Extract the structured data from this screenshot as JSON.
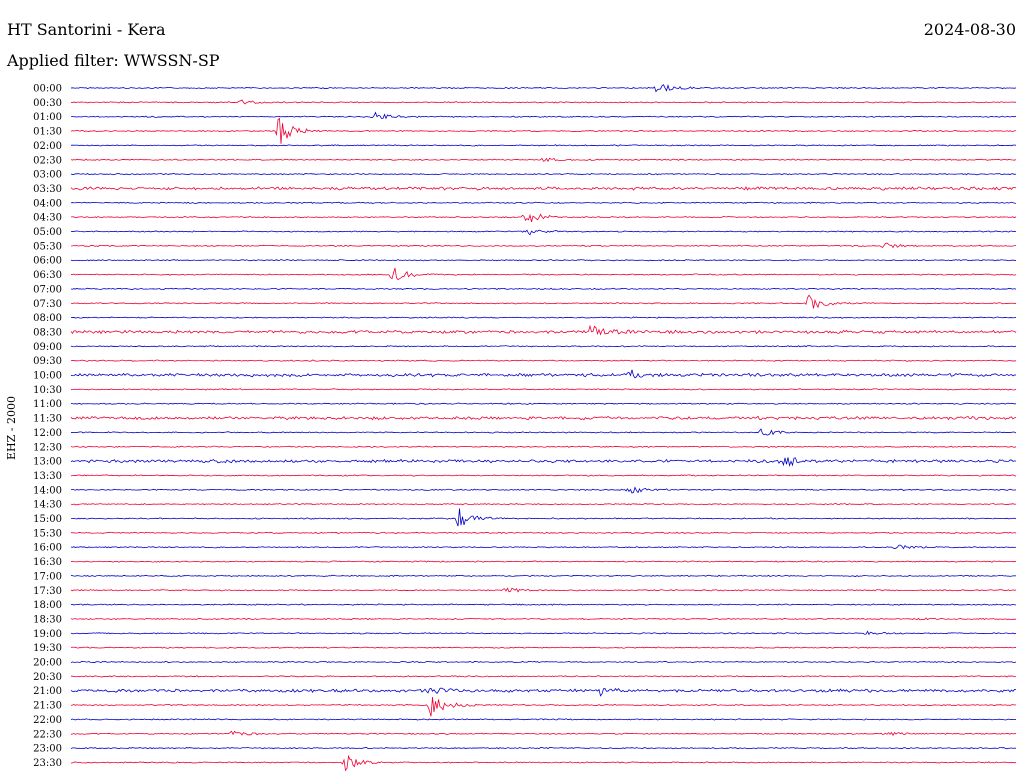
{
  "header": {
    "station": "HT Santorini - Kera",
    "filter": "Applied filter: WWSSN-SP",
    "date": "2024-08-30",
    "channel": "EHZ - 2000"
  },
  "chart_data": {
    "type": "line",
    "title": "HT Santorini - Kera",
    "subtitle": "Applied filter: WWSSN-SP",
    "ylabel": "EHZ - 2000",
    "row_labels": [
      "00:00",
      "00:30",
      "01:00",
      "01:30",
      "02:00",
      "02:30",
      "03:00",
      "03:30",
      "04:00",
      "04:30",
      "05:00",
      "05:30",
      "06:00",
      "06:30",
      "07:00",
      "07:30",
      "08:00",
      "08:30",
      "09:00",
      "09:30",
      "10:00",
      "10:30",
      "11:00",
      "11:30",
      "12:00",
      "12:30",
      "13:00",
      "13:30",
      "14:00",
      "14:30",
      "15:00",
      "15:30",
      "16:00",
      "16:30",
      "17:00",
      "17:30",
      "18:00",
      "18:30",
      "19:00",
      "19:30",
      "20:00",
      "20:30",
      "21:00",
      "21:30",
      "22:00",
      "22:30",
      "23:00",
      "23:30"
    ],
    "colors": {
      "even": "#0000cc",
      "odd": "#ee0033"
    },
    "events": [
      {
        "row": "00:00",
        "at": 0.62,
        "amp": 6
      },
      {
        "row": "00:30",
        "at": 0.18,
        "amp": 2
      },
      {
        "row": "01:00",
        "at": 0.32,
        "amp": 5
      },
      {
        "row": "01:30",
        "at": 0.22,
        "amp": 16
      },
      {
        "row": "02:30",
        "at": 0.5,
        "amp": 2
      },
      {
        "row": "04:30",
        "at": 0.48,
        "amp": 8
      },
      {
        "row": "05:00",
        "at": 0.48,
        "amp": 4
      },
      {
        "row": "05:30",
        "at": 0.86,
        "amp": 3
      },
      {
        "row": "06:30",
        "at": 0.34,
        "amp": 8
      },
      {
        "row": "07:30",
        "at": 0.78,
        "amp": 9
      },
      {
        "row": "08:30",
        "at": 0.55,
        "amp": 7
      },
      {
        "row": "10:00",
        "at": 0.59,
        "amp": 5
      },
      {
        "row": "12:00",
        "at": 0.73,
        "amp": 4
      },
      {
        "row": "13:00",
        "at": 0.75,
        "amp": 7
      },
      {
        "row": "14:00",
        "at": 0.59,
        "amp": 5
      },
      {
        "row": "15:00",
        "at": 0.41,
        "amp": 10
      },
      {
        "row": "16:00",
        "at": 0.87,
        "amp": 3
      },
      {
        "row": "17:30",
        "at": 0.46,
        "amp": 3
      },
      {
        "row": "18:30",
        "at": 0.89,
        "amp": 2
      },
      {
        "row": "19:00",
        "at": 0.84,
        "amp": 2
      },
      {
        "row": "21:00",
        "at": 0.38,
        "amp": 5
      },
      {
        "row": "21:00",
        "at": 0.56,
        "amp": 4
      },
      {
        "row": "21:30",
        "at": 0.38,
        "amp": 13
      },
      {
        "row": "22:30",
        "at": 0.17,
        "amp": 3
      },
      {
        "row": "22:30",
        "at": 0.86,
        "amp": 2
      },
      {
        "row": "23:30",
        "at": 0.29,
        "amp": 8
      }
    ],
    "noisy_rows": [
      "03:30",
      "08:30",
      "10:00",
      "11:30",
      "13:00",
      "21:00"
    ]
  }
}
